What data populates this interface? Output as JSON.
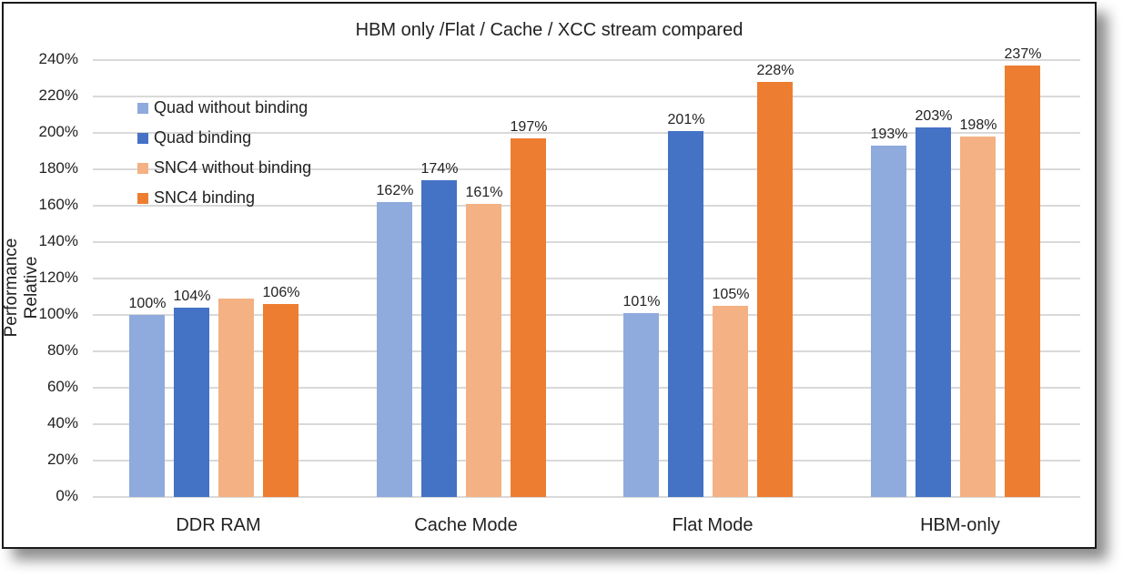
{
  "chart_data": {
    "type": "bar",
    "title": "HBM only /Flat / Cache / XCC stream compared",
    "xlabel": "",
    "ylabel": "Performance Relative",
    "ylim": [
      0,
      240
    ],
    "yticks": [
      "0%",
      "20%",
      "40%",
      "60%",
      "80%",
      "100%",
      "120%",
      "140%",
      "160%",
      "180%",
      "200%",
      "220%",
      "240%"
    ],
    "grid": true,
    "legend_position": "top-left inside",
    "categories": [
      "DDR RAM",
      "Cache Mode",
      "Flat Mode",
      "HBM-only"
    ],
    "series": [
      {
        "name": "Quad without binding",
        "color": "#8faadc",
        "values": [
          100,
          162,
          101,
          193
        ],
        "labels": [
          "100%",
          "162%",
          "101%",
          "193%"
        ]
      },
      {
        "name": "Quad binding",
        "color": "#4472c4",
        "values": [
          104,
          174,
          201,
          203
        ],
        "labels": [
          "104%",
          "174%",
          "201%",
          "203%"
        ]
      },
      {
        "name": "SNC4 without binding",
        "color": "#f4b183",
        "values": [
          109,
          161,
          105,
          198
        ],
        "labels": [
          "109%",
          "161%",
          "105%",
          "198%"
        ]
      },
      {
        "name": "SNC4 binding",
        "color": "#ed7d31",
        "values": [
          106,
          197,
          228,
          237
        ],
        "labels": [
          "106%",
          "197%",
          "228%",
          "237%"
        ]
      }
    ]
  }
}
